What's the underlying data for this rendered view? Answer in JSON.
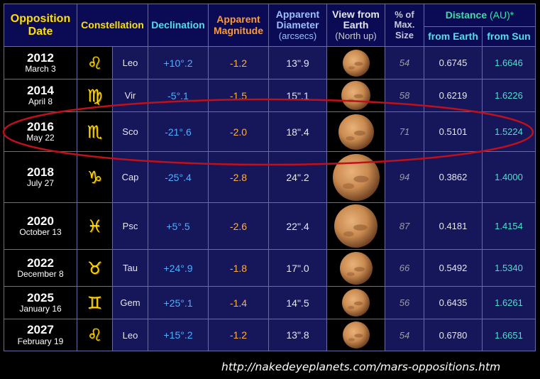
{
  "headers": {
    "date": "Opposition Date",
    "constellation": "Constellation",
    "declination": "Declination",
    "magnitude": "Apparent Magnitude",
    "diameter": "Apparent Diameter",
    "diameter_unit": "(arcsecs)",
    "view": "View from Earth",
    "view_note": "(North up)",
    "pct": "% of Max. Size",
    "distance": "Distance",
    "distance_unit": "(AU)*",
    "from_earth": "from Earth",
    "from_sun": "from Sun"
  },
  "rows": [
    {
      "year": "2012",
      "md": "March 3",
      "symbol": "leo-glyph",
      "glyph": "♌",
      "abbr": "Leo",
      "dec": "+10°.2",
      "mag": "-1.2",
      "diam": "13\".9",
      "size_pct": 54,
      "pct": "54",
      "de": "0.6745",
      "ds": "1.6646"
    },
    {
      "year": "2014",
      "md": "April 8",
      "symbol": "virgo-glyph",
      "glyph": "♍",
      "abbr": "Vir",
      "dec": "-5°.1",
      "mag": "-1.5",
      "diam": "15\".1",
      "size_pct": 58,
      "pct": "58",
      "de": "0.6219",
      "ds": "1.6226"
    },
    {
      "year": "2016",
      "md": "May 22",
      "symbol": "scorpio-glyph",
      "glyph": "♏",
      "abbr": "Sco",
      "dec": "-21°.6",
      "mag": "-2.0",
      "diam": "18\".4",
      "size_pct": 71,
      "pct": "71",
      "de": "0.5101",
      "ds": "1.5224"
    },
    {
      "year": "2018",
      "md": "July 27",
      "symbol": "capricorn-glyph",
      "glyph": "♑",
      "abbr": "Cap",
      "dec": "-25°.4",
      "mag": "-2.8",
      "diam": "24\".2",
      "size_pct": 94,
      "pct": "94",
      "de": "0.3862",
      "ds": "1.4000"
    },
    {
      "year": "2020",
      "md": "October 13",
      "symbol": "pisces-glyph",
      "glyph": "♓",
      "abbr": "Psc",
      "dec": "+5°.5",
      "mag": "-2.6",
      "diam": "22\".4",
      "size_pct": 87,
      "pct": "87",
      "de": "0.4181",
      "ds": "1.4154"
    },
    {
      "year": "2022",
      "md": "December 8",
      "symbol": "taurus-glyph",
      "glyph": "♉",
      "abbr": "Tau",
      "dec": "+24°.9",
      "mag": "-1.8",
      "diam": "17\".0",
      "size_pct": 66,
      "pct": "66",
      "de": "0.5492",
      "ds": "1.5340"
    },
    {
      "year": "2025",
      "md": "January 16",
      "symbol": "gemini-glyph",
      "glyph": "♊",
      "abbr": "Gem",
      "dec": "+25°.1",
      "mag": "-1.4",
      "diam": "14\".5",
      "size_pct": 56,
      "pct": "56",
      "de": "0.6435",
      "ds": "1.6261"
    },
    {
      "year": "2027",
      "md": "February 19",
      "symbol": "leo-glyph",
      "glyph": "♌",
      "abbr": "Leo",
      "dec": "+15°.2",
      "mag": "-1.2",
      "diam": "13\".8",
      "size_pct": 54,
      "pct": "54",
      "de": "0.6780",
      "ds": "1.6651"
    }
  ],
  "highlight": {
    "row": "2016",
    "color": "#c0101a"
  },
  "colors": {
    "background": "#000000",
    "header_bg": "#0a0a55",
    "cell_bg": "#16165a",
    "border": "#6a6aa0",
    "glyph": "#ffd900",
    "mars": "#c98a50"
  },
  "source_url": "http://nakedeyeplanets.com/mars-oppositions.htm"
}
